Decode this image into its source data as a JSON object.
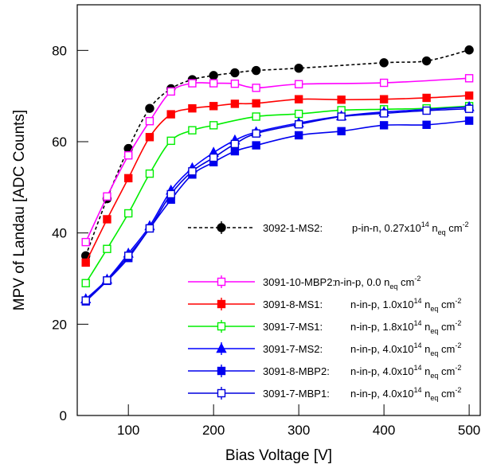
{
  "chart_data": {
    "type": "line",
    "x_label": "Bias Voltage [V]",
    "y_label": "MPV of Landau [ADC Counts]",
    "xlim": [
      40,
      513
    ],
    "xticks": [
      100,
      200,
      300,
      400,
      500
    ],
    "ylim": [
      0,
      90
    ],
    "yticks": [
      0,
      20,
      40,
      60,
      80
    ],
    "series": [
      {
        "name": "3092-1-MS2:",
        "desc": [
          {
            "text": "p-in-n, 0.27x10",
            "pos": "base"
          },
          {
            "text": "14",
            "pos": "sup"
          },
          {
            "text": " n",
            "pos": "base"
          },
          {
            "text": "eq",
            "pos": "sub"
          },
          {
            "text": " cm",
            "pos": "base"
          },
          {
            "text": "-2",
            "pos": "sup"
          }
        ],
        "color": "#000000",
        "marker": "circle",
        "filled": true,
        "dashed": true,
        "x": [
          50,
          75,
          100,
          125,
          150,
          175,
          200,
          225,
          250,
          300,
          400,
          450,
          500
        ],
        "values": [
          35,
          47.5,
          58.5,
          67.3,
          71.6,
          73.6,
          74.5,
          75.1,
          75.6,
          76.1,
          77.3,
          77.7,
          80.1
        ]
      },
      {
        "name": "3091-10-MBP2:",
        "desc": [
          {
            "text": "n-in-p, 0.0 n",
            "pos": "base"
          },
          {
            "text": "eq",
            "pos": "sub"
          },
          {
            "text": " cm",
            "pos": "base"
          },
          {
            "text": "-2",
            "pos": "sup"
          }
        ],
        "color": "#ff00ff",
        "marker": "square",
        "filled": false,
        "dashed": false,
        "x": [
          50,
          75,
          100,
          125,
          150,
          175,
          200,
          225,
          250,
          300,
          400,
          500
        ],
        "values": [
          38,
          48,
          57,
          64.5,
          71,
          72.8,
          72.8,
          72.7,
          71.8,
          72.6,
          72.9,
          73.9
        ]
      },
      {
        "name": "3091-8-MS1:",
        "desc": [
          {
            "text": "n-in-p, 1.0x10",
            "pos": "base"
          },
          {
            "text": "14",
            "pos": "sup"
          },
          {
            "text": " n",
            "pos": "base"
          },
          {
            "text": "eq",
            "pos": "sub"
          },
          {
            "text": " cm",
            "pos": "base"
          },
          {
            "text": "-2",
            "pos": "sup"
          }
        ],
        "color": "#ff0000",
        "marker": "square",
        "filled": true,
        "dashed": false,
        "x": [
          50,
          75,
          100,
          125,
          150,
          175,
          200,
          225,
          250,
          300,
          350,
          400,
          450,
          500
        ],
        "values": [
          33.5,
          43,
          52,
          61,
          66,
          67.3,
          67.8,
          68.3,
          68.4,
          69.3,
          69.2,
          69.3,
          69.6,
          70.1
        ]
      },
      {
        "name": "3091-7-MS1:",
        "desc": [
          {
            "text": "n-in-p, 1.8x10",
            "pos": "base"
          },
          {
            "text": "14",
            "pos": "sup"
          },
          {
            "text": " n",
            "pos": "base"
          },
          {
            "text": "eq",
            "pos": "sub"
          },
          {
            "text": " cm",
            "pos": "base"
          },
          {
            "text": "-2",
            "pos": "sup"
          }
        ],
        "color": "#00ee00",
        "marker": "square",
        "filled": false,
        "dashed": false,
        "x": [
          50,
          75,
          100,
          125,
          150,
          175,
          200,
          250,
          300,
          350,
          400,
          450,
          500
        ],
        "values": [
          29,
          36.5,
          44.3,
          53,
          60.2,
          62.5,
          63.6,
          65.5,
          66.1,
          66.9,
          67.1,
          67.3,
          67.8
        ]
      },
      {
        "name": "3091-7-MS2:",
        "desc": [
          {
            "text": "n-in-p, 4.0x10",
            "pos": "base"
          },
          {
            "text": "14",
            "pos": "sup"
          },
          {
            "text": " n",
            "pos": "base"
          },
          {
            "text": "eq",
            "pos": "sub"
          },
          {
            "text": " cm",
            "pos": "base"
          },
          {
            "text": "-2",
            "pos": "sup"
          }
        ],
        "color": "#0000ff",
        "marker": "triangle",
        "filled": true,
        "dashed": false,
        "x": [
          50,
          75,
          100,
          125,
          150,
          175,
          200,
          225,
          250,
          300,
          350,
          400,
          500
        ],
        "values": [
          25.5,
          29.8,
          35.5,
          41.5,
          49.3,
          54.2,
          57.6,
          60.3,
          62.1,
          64.1,
          65.6,
          66.5,
          67.6
        ]
      },
      {
        "name": "3091-8-MBP2:",
        "desc": [
          {
            "text": "n-in-p, 4.0x10",
            "pos": "base"
          },
          {
            "text": "14",
            "pos": "sup"
          },
          {
            "text": " n",
            "pos": "base"
          },
          {
            "text": "eq",
            "pos": "sub"
          },
          {
            "text": " cm",
            "pos": "base"
          },
          {
            "text": "-2",
            "pos": "sup"
          }
        ],
        "color": "#0000ee",
        "marker": "square",
        "filled": true,
        "dashed": false,
        "x": [
          50,
          75,
          100,
          125,
          150,
          175,
          200,
          225,
          250,
          300,
          350,
          400,
          450,
          500
        ],
        "values": [
          25,
          29.5,
          34.5,
          41,
          47.3,
          52.8,
          55.5,
          57.9,
          59.2,
          61.4,
          62.3,
          63.6,
          63.7,
          64.6
        ]
      },
      {
        "name": "3091-7-MBP1:",
        "desc": [
          {
            "text": "n-in-p, 4.0x10",
            "pos": "base"
          },
          {
            "text": "14",
            "pos": "sup"
          },
          {
            "text": " n",
            "pos": "base"
          },
          {
            "text": "eq",
            "pos": "sub"
          },
          {
            "text": " cm",
            "pos": "base"
          },
          {
            "text": "-2",
            "pos": "sup"
          }
        ],
        "color": "#0000dd",
        "marker": "square",
        "filled": false,
        "dashed": false,
        "x": [
          50,
          75,
          100,
          125,
          150,
          175,
          200,
          225,
          250,
          300,
          350,
          400,
          450,
          500
        ],
        "values": [
          25.2,
          29.6,
          35,
          41,
          48.5,
          53.5,
          56.5,
          59.5,
          61.8,
          63.8,
          65.5,
          66.2,
          66.8,
          67.2
        ]
      }
    ]
  }
}
